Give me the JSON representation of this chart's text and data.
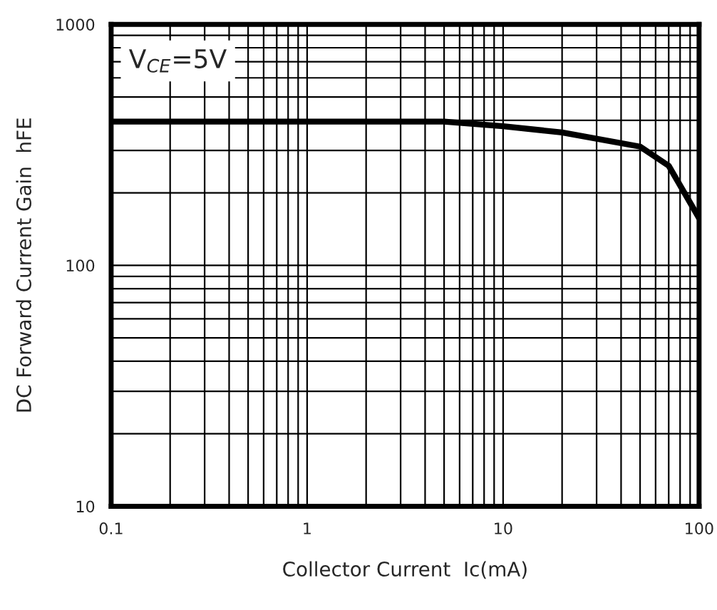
{
  "chart_data": {
    "type": "line",
    "xlabel": "Collector Current  Ic(mA)",
    "ylabel": "DC Forward Current Gain  hFE",
    "log": "xy",
    "xlim": [
      0.1,
      100
    ],
    "ylim": [
      10,
      1000
    ],
    "xticks": [
      0.1,
      1,
      10,
      100
    ],
    "yticks": [
      10,
      100,
      1000
    ],
    "grid": true,
    "marker": "none",
    "line_style": "solid",
    "annotations": [
      "V$_{CE}$=5V"
    ],
    "series": [
      {
        "color": "#000000",
        "x": [
          0.1,
          5,
          10,
          20,
          50,
          70,
          100
        ],
        "values": [
          395,
          395,
          378,
          356,
          311,
          259,
          157
        ]
      }
    ]
  }
}
